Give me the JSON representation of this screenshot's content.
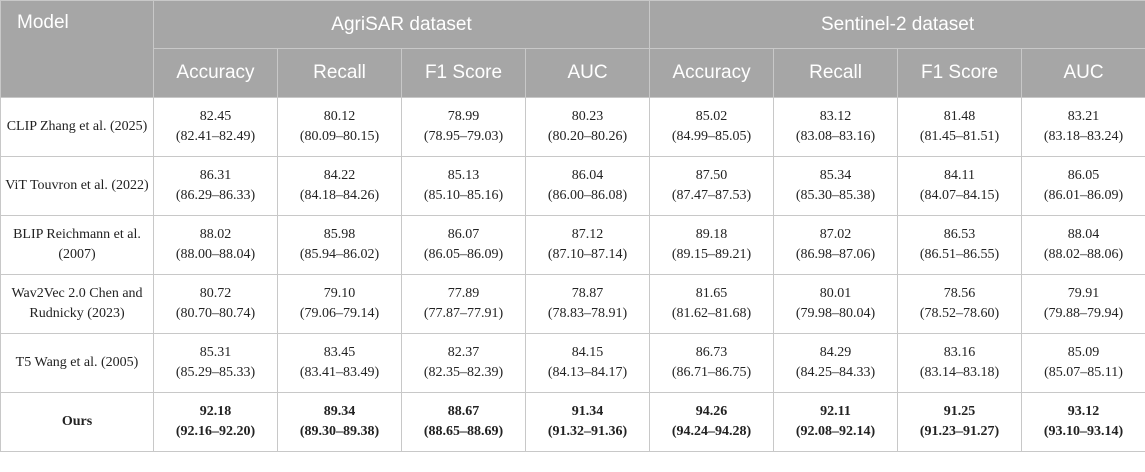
{
  "header": {
    "model": "Model",
    "groups": [
      "AgriSAR dataset",
      "Sentinel-2 dataset"
    ],
    "metrics": [
      "Accuracy",
      "Recall",
      "F1 Score",
      "AUC",
      "Accuracy",
      "Recall",
      "F1 Score",
      "AUC"
    ]
  },
  "rows": [
    {
      "model": "CLIP Zhang et al. (2025)",
      "cells": [
        {
          "v": "82.45",
          "ci": "(82.41–82.49)"
        },
        {
          "v": "80.12",
          "ci": "(80.09–80.15)"
        },
        {
          "v": "78.99",
          "ci": "(78.95–79.03)"
        },
        {
          "v": "80.23",
          "ci": "(80.20–80.26)"
        },
        {
          "v": "85.02",
          "ci": "(84.99–85.05)"
        },
        {
          "v": "83.12",
          "ci": "(83.08–83.16)"
        },
        {
          "v": "81.48",
          "ci": "(81.45–81.51)"
        },
        {
          "v": "83.21",
          "ci": "(83.18–83.24)"
        }
      ]
    },
    {
      "model": "ViT Touvron et al. (2022)",
      "cells": [
        {
          "v": "86.31",
          "ci": "(86.29–86.33)"
        },
        {
          "v": "84.22",
          "ci": "(84.18–84.26)"
        },
        {
          "v": "85.13",
          "ci": "(85.10–85.16)"
        },
        {
          "v": "86.04",
          "ci": "(86.00–86.08)"
        },
        {
          "v": "87.50",
          "ci": "(87.47–87.53)"
        },
        {
          "v": "85.34",
          "ci": "(85.30–85.38)"
        },
        {
          "v": "84.11",
          "ci": "(84.07–84.15)"
        },
        {
          "v": "86.05",
          "ci": "(86.01–86.09)"
        }
      ]
    },
    {
      "model": "BLIP Reichmann et al. (2007)",
      "cells": [
        {
          "v": "88.02",
          "ci": "(88.00–88.04)"
        },
        {
          "v": "85.98",
          "ci": "(85.94–86.02)"
        },
        {
          "v": "86.07",
          "ci": "(86.05–86.09)"
        },
        {
          "v": "87.12",
          "ci": "(87.10–87.14)"
        },
        {
          "v": "89.18",
          "ci": "(89.15–89.21)"
        },
        {
          "v": "87.02",
          "ci": "(86.98–87.06)"
        },
        {
          "v": "86.53",
          "ci": "(86.51–86.55)"
        },
        {
          "v": "88.04",
          "ci": "(88.02–88.06)"
        }
      ]
    },
    {
      "model": "Wav2Vec 2.0 Chen and Rudnicky (2023)",
      "cells": [
        {
          "v": "80.72",
          "ci": "(80.70–80.74)"
        },
        {
          "v": "79.10",
          "ci": "(79.06–79.14)"
        },
        {
          "v": "77.89",
          "ci": "(77.87–77.91)"
        },
        {
          "v": "78.87",
          "ci": "(78.83–78.91)"
        },
        {
          "v": "81.65",
          "ci": "(81.62–81.68)"
        },
        {
          "v": "80.01",
          "ci": "(79.98–80.04)"
        },
        {
          "v": "78.56",
          "ci": "(78.52–78.60)"
        },
        {
          "v": "79.91",
          "ci": "(79.88–79.94)"
        }
      ]
    },
    {
      "model": "T5 Wang et al. (2005)",
      "cells": [
        {
          "v": "85.31",
          "ci": "(85.29–85.33)"
        },
        {
          "v": "83.45",
          "ci": "(83.41–83.49)"
        },
        {
          "v": "82.37",
          "ci": "(82.35–82.39)"
        },
        {
          "v": "84.15",
          "ci": "(84.13–84.17)"
        },
        {
          "v": "86.73",
          "ci": "(86.71–86.75)"
        },
        {
          "v": "84.29",
          "ci": "(84.25–84.33)"
        },
        {
          "v": "83.16",
          "ci": "(83.14–83.18)"
        },
        {
          "v": "85.09",
          "ci": "(85.07–85.11)"
        }
      ]
    },
    {
      "model": "Ours",
      "bold": true,
      "cells": [
        {
          "v": "92.18",
          "ci": "(92.16–92.20)"
        },
        {
          "v": "89.34",
          "ci": "(89.30–89.38)"
        },
        {
          "v": "88.67",
          "ci": "(88.65–88.69)"
        },
        {
          "v": "91.34",
          "ci": "(91.32–91.36)"
        },
        {
          "v": "94.26",
          "ci": "(94.24–94.28)"
        },
        {
          "v": "92.11",
          "ci": "(92.08–92.14)"
        },
        {
          "v": "91.25",
          "ci": "(91.23–91.27)"
        },
        {
          "v": "93.12",
          "ci": "(93.10–93.14)"
        }
      ]
    }
  ]
}
